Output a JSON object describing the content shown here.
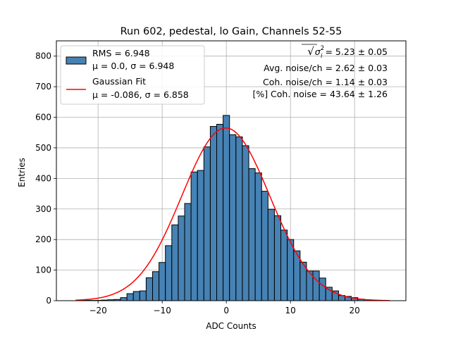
{
  "chart_data": {
    "type": "bar",
    "title": "Run 602, pedestal, lo Gain, Channels 52-55",
    "xlabel": "ADC Counts",
    "ylabel": "Entries",
    "xlim": [
      -26.5,
      28
    ],
    "ylim": [
      0,
      850
    ],
    "xticks": [
      -20,
      -10,
      0,
      10,
      20
    ],
    "xtick_labels": [
      "−20",
      "−10",
      "0",
      "10",
      "20"
    ],
    "yticks": [
      0,
      100,
      200,
      300,
      400,
      500,
      600,
      700,
      800
    ],
    "ytick_labels": [
      "0",
      "100",
      "200",
      "300",
      "400",
      "500",
      "600",
      "700",
      "800"
    ],
    "grid": true,
    "bin_start": -22.5,
    "bin_width": 1,
    "values": [
      1,
      1,
      1,
      2,
      3,
      4,
      10,
      23,
      30,
      32,
      75,
      95,
      125,
      180,
      248,
      277,
      318,
      421,
      426,
      503,
      570,
      577,
      606,
      543,
      536,
      507,
      432,
      418,
      358,
      299,
      278,
      231,
      200,
      163,
      126,
      97,
      97,
      74,
      44,
      32,
      17,
      14,
      10,
      5,
      3,
      1,
      1
    ],
    "bar_color": "#4682b4",
    "fit": {
      "name": "Gaussian Fit",
      "mu": -0.086,
      "sigma": 6.858,
      "amplitude": 565,
      "x_range": [
        -23.5,
        25.5
      ],
      "color": "#ff0000"
    },
    "legend": {
      "placement": "top-left",
      "entries": [
        {
          "line1": "RMS = 6.948",
          "line2": "μ = 0.0, σ = 6.948",
          "marker": "bar"
        },
        {
          "line1": "Gaussian Fit",
          "line2": "μ = -0.086, σ = 6.858",
          "marker": "line"
        }
      ]
    },
    "annotations": [
      {
        "prefix": "√",
        "sym": "σ",
        "sup": "2",
        "sub": "i",
        "rest": " = 5.23 ± 0.05"
      },
      {
        "text": "Avg. noise/ch = 2.62 ± 0.03"
      },
      {
        "text": "Coh. noise/ch = 1.14 ± 0.03"
      },
      {
        "text": "[%] Coh. noise = 43.64 ± 1.26"
      }
    ]
  }
}
